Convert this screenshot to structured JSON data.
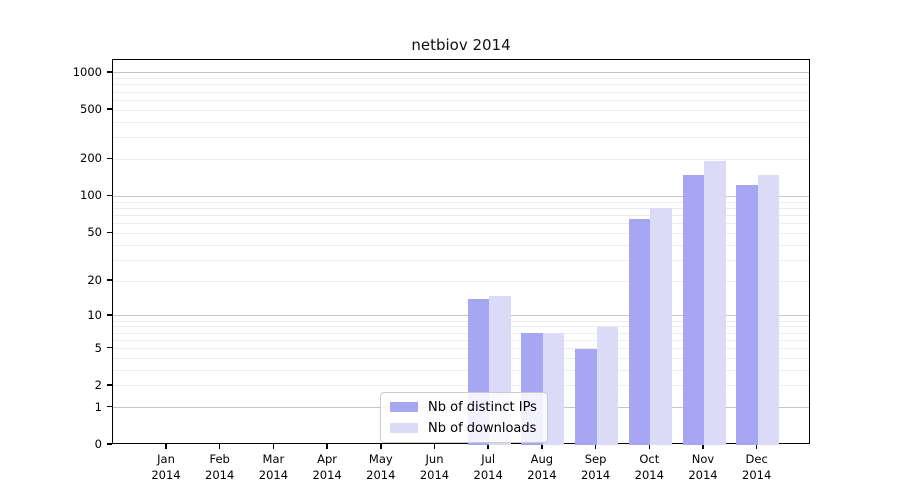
{
  "chart_data": {
    "type": "bar",
    "title": "netbiov 2014",
    "x_axis": {
      "months": [
        "Jan",
        "Feb",
        "Mar",
        "Apr",
        "May",
        "Jun",
        "Jul",
        "Aug",
        "Sep",
        "Oct",
        "Nov",
        "Dec"
      ],
      "year": "2014"
    },
    "y_axis": {
      "scale": "log10(1+x)",
      "ticks": [
        1000,
        500,
        200,
        100,
        50,
        20,
        10,
        5,
        2,
        1,
        0
      ],
      "ylim": [
        0,
        1200
      ],
      "grid": "horizontal minor log gridlines, darker lines at decades"
    },
    "series": [
      {
        "name": "Nb of distinct IPs",
        "color": "#a6a6f3",
        "values": [
          0,
          0,
          0,
          0,
          0,
          0,
          14,
          7,
          5,
          65,
          150,
          125
        ]
      },
      {
        "name": "Nb of downloads",
        "color": "#dbdbf8",
        "values": [
          0,
          0,
          0,
          0,
          0,
          0,
          15,
          7,
          8,
          80,
          195,
          150
        ]
      }
    ],
    "legend": {
      "position": "bottom-center-inside",
      "entries": [
        "Nb of distinct IPs",
        "Nb of downloads"
      ]
    }
  }
}
